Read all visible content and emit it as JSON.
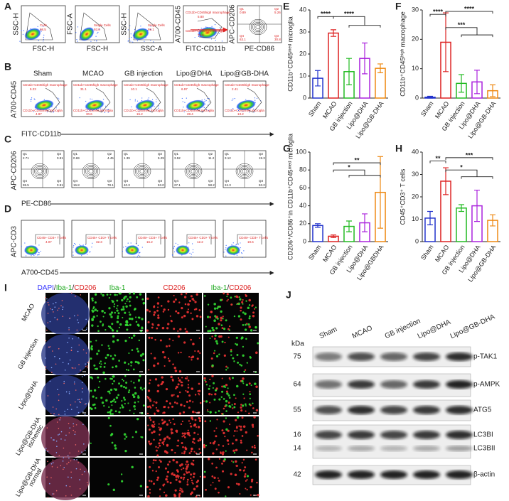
{
  "figure": {
    "A": {
      "label": "A",
      "plots": [
        {
          "y": "SSC-H",
          "x": "FSC-H",
          "gates": [
            {
              "name": "Cells",
              "value": "98.5"
            }
          ]
        },
        {
          "y": "FSC-A",
          "x": "FSC-H",
          "gates": [
            {
              "name": "Single Cells",
              "value": "93.0"
            }
          ]
        },
        {
          "y": "SSC-H",
          "x": "SSC-A",
          "gates": [
            {
              "name": "Single Cells",
              "value": "99.1"
            }
          ]
        },
        {
          "y": "A700-CD45",
          "x": "FITC-CD11b",
          "gates": [
            {
              "name": "CD11b+CD45high macrophage",
              "value": "5.80"
            },
            {
              "name": "CD11b+CD45med microglia",
              "value": "72.5"
            }
          ]
        },
        {
          "y": "APC-CD206",
          "x": "PE-CD86",
          "quadrants": [
            "0.89",
            "5.26",
            "30.8",
            "63.1"
          ]
        }
      ]
    },
    "groups": [
      "Sham",
      "MCAO",
      "GB injection",
      "Lipo@DHA",
      "Lipo@GB-DHA"
    ],
    "B": {
      "label": "B",
      "y": "A700-CD45",
      "x": "FITC-CD11b",
      "macrophage_gate": "CD11b+CD45high macrophage",
      "microglia_gate": "CD11b+CD45med microglia",
      "macrophage": [
        "5.23",
        "31.1",
        "10.1",
        "6.97",
        "2.41"
      ],
      "microglia": [
        "4.97",
        "30.6",
        "15.2",
        "28.4",
        "13.2"
      ]
    },
    "C": {
      "label": "C",
      "y": "APC-CD206",
      "x": "PE-CD86",
      "quadrant_names": [
        "Q1",
        "Q2",
        "Q3",
        "Q4"
      ],
      "quadrants": [
        [
          "2.71",
          "0.91",
          "0.91",
          "95.5"
        ],
        [
          "0.69",
          "4.45",
          "78.1",
          "16.8"
        ],
        [
          "1.39",
          "5.29",
          "53.0",
          "40.3"
        ],
        [
          "3.52",
          "11.2",
          "58.2",
          "27.1"
        ],
        [
          "3.12",
          "19.3",
          "53.2",
          "24.3"
        ]
      ]
    },
    "D": {
      "label": "D",
      "y": "APC-CD3",
      "x": "A700-CD45",
      "gate": "CD45+ CD3+ T cells",
      "values": [
        "4.07",
        "32.3",
        "16.2",
        "12.2",
        "19.6"
      ]
    },
    "I": {
      "label": "I",
      "columns": [
        [
          "DAPI",
          "/",
          "Iba-1",
          "/",
          "CD206"
        ],
        [
          "Iba-1"
        ],
        [
          "CD206"
        ],
        [
          "Iba-1",
          "/",
          "CD206"
        ]
      ],
      "rows": [
        [
          "MCAO"
        ],
        [
          "GB injection"
        ],
        [
          "Lipo@DHA"
        ],
        [
          "Lipo@GB-DHA",
          "ischemic"
        ],
        [
          "Lipo@GB-DHA",
          "normal"
        ]
      ]
    },
    "J": {
      "label": "J",
      "unit": "kDa",
      "lanes": [
        "Sham",
        "MCAO",
        "GB injection",
        "Lipo@DHA",
        "Lipo@GB-DHA"
      ],
      "rows": [
        {
          "kda": "75",
          "name": "p-TAK1"
        },
        {
          "kda": "64",
          "name": "p-AMPK"
        },
        {
          "kda": "55",
          "name": "ATG5"
        },
        {
          "kda": "16",
          "name": "LC3BI"
        },
        {
          "kda": "14",
          "name": "LC3BII"
        },
        {
          "kda": "42",
          "name": "β-actin"
        }
      ]
    }
  },
  "chart_data": [
    {
      "type": "bar",
      "panel": "E",
      "ylabel": "CD11b⁺CD45ᵐᵉᵈ microglia",
      "categories": [
        "Sham",
        "MCAO",
        "GB injection",
        "Lipo@DHA",
        "Lipo@GB-DHA"
      ],
      "values": [
        9,
        29.5,
        12,
        18,
        13.5
      ],
      "errors": [
        3.5,
        1.5,
        6,
        7,
        2
      ],
      "colors": [
        "#2233cc",
        "#dd2222",
        "#22bb22",
        "#aa22dd",
        "#ee8811"
      ],
      "ylim": [
        0,
        40
      ],
      "yticks": [
        0,
        10,
        20,
        30,
        40
      ],
      "annotations": [
        "****",
        "****"
      ]
    },
    {
      "type": "bar",
      "panel": "F",
      "ylabel": "CD11b⁺CD45ʰⁱᵍʰ macrophage",
      "categories": [
        "Sham",
        "MCAO",
        "GB injection",
        "Lipo@DHA",
        "Lipo@GB-DHA"
      ],
      "values": [
        0.3,
        19,
        5,
        5.5,
        2.5
      ],
      "errors": [
        0.3,
        10,
        3,
        4,
        2
      ],
      "colors": [
        "#2233cc",
        "#dd2222",
        "#22bb22",
        "#aa22dd",
        "#ee8811"
      ],
      "ylim": [
        0,
        30
      ],
      "yticks": [
        0,
        10,
        20,
        30
      ],
      "annotations": [
        "****",
        "***",
        "****"
      ]
    },
    {
      "type": "bar",
      "panel": "G",
      "ylabel": "CD206⁺/CD86⁺in CD11b⁺CD45ᵐᵉᵈ microglia",
      "categories": [
        "Sham",
        "MCAO",
        "GB injection",
        "Lipo@DHA",
        "Lipo@GBDHA"
      ],
      "values": [
        18,
        6,
        17,
        21,
        55
      ],
      "errors": [
        2,
        1.5,
        6,
        10,
        40
      ],
      "colors": [
        "#2233cc",
        "#dd2222",
        "#22bb22",
        "#aa22dd",
        "#ee8811"
      ],
      "ylim": [
        0,
        100
      ],
      "yticks": [
        0,
        20,
        40,
        60,
        80,
        100
      ],
      "annotations": [
        "**",
        "*"
      ]
    },
    {
      "type": "bar",
      "panel": "H",
      "ylabel": "CD45⁺CD3⁺ T cells",
      "categories": [
        "Sham",
        "MCAO",
        "GB injection",
        "Lipo@DHA",
        "Lipo@GB-DHA"
      ],
      "values": [
        10.5,
        27,
        15,
        16,
        9.5
      ],
      "errors": [
        3,
        6,
        1.5,
        7,
        2.5
      ],
      "colors": [
        "#2233cc",
        "#dd2222",
        "#22bb22",
        "#aa22dd",
        "#ee8811"
      ],
      "ylim": [
        0,
        40
      ],
      "yticks": [
        0,
        10,
        20,
        30,
        40
      ],
      "annotations": [
        "**",
        "*",
        "***"
      ]
    }
  ]
}
